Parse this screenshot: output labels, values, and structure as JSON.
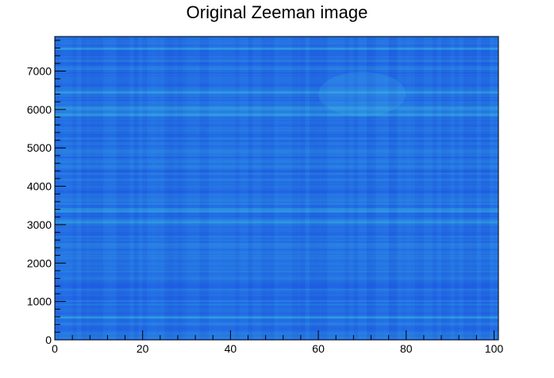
{
  "chart_data": {
    "type": "heatmap",
    "title": "Original Zeeman image",
    "xlabel": "",
    "ylabel": "",
    "xlim": [
      0,
      101
    ],
    "ylim": [
      0,
      7900
    ],
    "x_ticks": [
      0,
      20,
      40,
      60,
      80,
      100
    ],
    "y_ticks": [
      0,
      1000,
      2000,
      3000,
      4000,
      5000,
      6000,
      7000
    ],
    "colormap_range": [
      "#1a49e6",
      "#2fa0e0"
    ],
    "description_values": {
      "x_bins": 101,
      "y_extent": 7900,
      "dominant_level": 0.45,
      "bright_rows": [
        600,
        3080,
        3380,
        5880,
        6020,
        6450,
        7600
      ],
      "bright_blob": {
        "x": 70,
        "y": 6400,
        "level": 0.75
      }
    }
  }
}
